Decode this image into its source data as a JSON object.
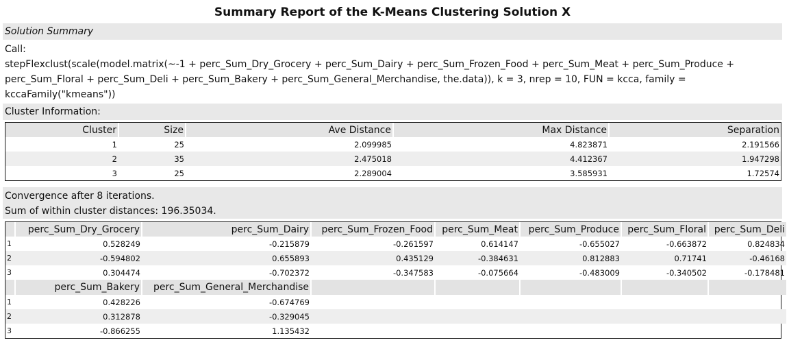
{
  "title": "Summary Report of the K-Means Clustering Solution X",
  "section_title": "Solution Summary",
  "call_label": "Call:",
  "call_line1": "stepFlexclust(scale(model.matrix(~-1 + perc_Sum_Dry_Grocery + perc_Sum_Dairy + perc_Sum_Frozen_Food + perc_Sum_Meat + perc_Sum_Produce +",
  "call_line2": "perc_Sum_Floral + perc_Sum_Deli + perc_Sum_Bakery + perc_Sum_General_Merchandise, the.data)), k = 3, nrep = 10, FUN = kcca, family =",
  "call_line3": "kccaFamily(\"kmeans\"))",
  "cluster_info_label": "Cluster Information:",
  "cluster_table": {
    "headers": [
      "Cluster",
      "Size",
      "Ave Distance",
      "Max Distance",
      "Separation"
    ],
    "rows": [
      [
        "1",
        "25",
        "2.099985",
        "4.823871",
        "2.191566"
      ],
      [
        "2",
        "35",
        "2.475018",
        "4.412367",
        "1.947298"
      ],
      [
        "3",
        "25",
        "2.289004",
        "3.585931",
        "1.72574"
      ]
    ]
  },
  "convergence": "Convergence after 8 iterations.",
  "sum_within": "Sum of within cluster distances: 196.35034.",
  "centers_table_1": {
    "headers": [
      "perc_Sum_Dry_Grocery",
      "perc_Sum_Dairy",
      "perc_Sum_Frozen_Food",
      "perc_Sum_Meat",
      "perc_Sum_Produce",
      "perc_Sum_Floral",
      "perc_Sum_Deli"
    ],
    "rows": [
      [
        "1",
        "0.528249",
        "-0.215879",
        "-0.261597",
        "0.614147",
        "-0.655027",
        "-0.663872",
        "0.824834"
      ],
      [
        "2",
        "-0.594802",
        "0.655893",
        "0.435129",
        "-0.384631",
        "0.812883",
        "0.71741",
        "-0.46168"
      ],
      [
        "3",
        "0.304474",
        "-0.702372",
        "-0.347583",
        "-0.075664",
        "-0.483009",
        "-0.340502",
        "-0.178481"
      ]
    ]
  },
  "centers_table_2": {
    "headers": [
      "perc_Sum_Bakery",
      "perc_Sum_General_Merchandise"
    ],
    "rows": [
      [
        "1",
        "0.428226",
        "-0.674769"
      ],
      [
        "2",
        "0.312878",
        "-0.329045"
      ],
      [
        "3",
        "-0.866255",
        "1.135432"
      ]
    ]
  }
}
